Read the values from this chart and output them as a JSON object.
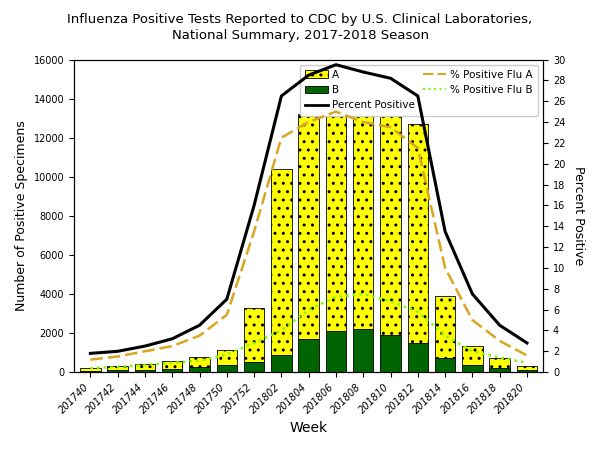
{
  "title": "Influenza Positive Tests Reported to CDC by U.S. Clinical Laboratories,\nNational Summary, 2017-2018 Season",
  "weeks": [
    "201740",
    "201742",
    "201744",
    "201746",
    "201748",
    "201750",
    "201752",
    "201802",
    "201804",
    "201806",
    "201808",
    "201810",
    "201812",
    "201814",
    "201816",
    "201818",
    "201820"
  ],
  "flu_a": [
    150,
    200,
    280,
    380,
    550,
    800,
    2800,
    9500,
    11500,
    13000,
    12800,
    12500,
    11200,
    3200,
    1000,
    500,
    200
  ],
  "flu_b": [
    80,
    100,
    130,
    180,
    240,
    350,
    500,
    900,
    1700,
    2100,
    2200,
    1900,
    1500,
    700,
    350,
    200,
    100
  ],
  "pct_positive": [
    1.8,
    2.0,
    2.5,
    3.2,
    4.5,
    7.0,
    16.0,
    26.5,
    28.5,
    29.5,
    28.8,
    28.2,
    26.5,
    13.5,
    7.5,
    4.5,
    2.8
  ],
  "pct_flu_a": [
    1.2,
    1.5,
    2.0,
    2.5,
    3.5,
    5.5,
    13.5,
    22.5,
    24.0,
    25.0,
    24.0,
    23.5,
    21.5,
    10.0,
    5.0,
    3.0,
    1.6
  ],
  "pct_flu_b": [
    0.4,
    0.5,
    0.7,
    0.9,
    1.1,
    1.7,
    2.8,
    4.0,
    6.0,
    7.2,
    7.5,
    6.8,
    5.8,
    3.5,
    2.0,
    1.4,
    0.9
  ],
  "ylim_left": [
    0,
    16000
  ],
  "ylim_right": [
    0,
    30
  ],
  "yticks_left_step": 2000,
  "yticks_right_step": 2,
  "ylabel_left": "Number of Positive Specimens",
  "ylabel_right": "Percent Positive",
  "xlabel": "Week",
  "bar_color_a": "#FFFF00",
  "bar_color_b": "#006400",
  "bar_edge_color": "#000000",
  "line_color_pct": "#000000",
  "line_color_a": "#DAA520",
  "line_color_b": "#7CFC00",
  "background_color": "#FFFFFF",
  "title_fontsize": 9.5,
  "axis_label_fontsize": 9,
  "tick_fontsize": 7,
  "legend_fontsize": 7.5
}
